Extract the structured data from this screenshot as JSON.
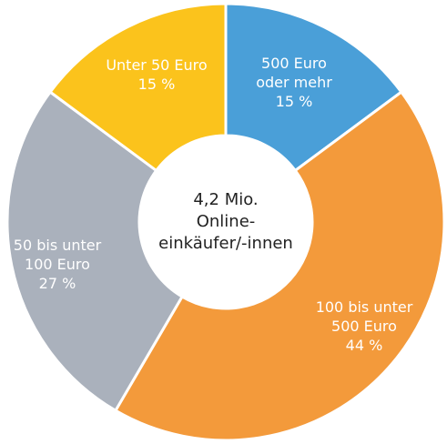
{
  "chart_data": {
    "type": "pie",
    "donut": true,
    "categories": [
      "500 Euro oder mehr",
      "100 bis unter 500 Euro",
      "50 bis unter 100 Euro",
      "Unter 50 Euro"
    ],
    "values": [
      15,
      44,
      27,
      15
    ],
    "value_labels": [
      "15 %",
      "44 %",
      "27 %",
      "15 %"
    ],
    "colors": [
      "#4a9fd8",
      "#f39a3b",
      "#aab1bc",
      "#fbc31c"
    ],
    "center_label": [
      "4,2 Mio.",
      "Online-",
      "einkäufer/-innen"
    ]
  }
}
